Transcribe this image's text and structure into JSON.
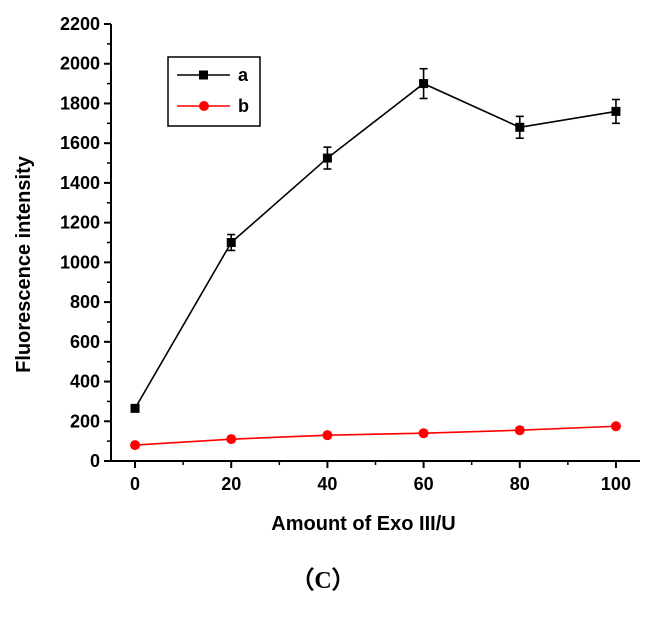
{
  "chart_data": {
    "type": "line",
    "xlabel": "Amount of Exo III/U",
    "ylabel": "Fluorescence intensity",
    "xlim": [
      -5,
      105
    ],
    "ylim": [
      0,
      2200
    ],
    "xticks": [
      0,
      20,
      40,
      60,
      80,
      100
    ],
    "yticks": [
      0,
      200,
      400,
      600,
      800,
      1000,
      1200,
      1400,
      1600,
      1800,
      2000,
      2200
    ],
    "grid": false,
    "legend_position": "top-left",
    "series": [
      {
        "name": "a",
        "color": "#000000",
        "marker": "square",
        "x": [
          0,
          20,
          40,
          60,
          80,
          100
        ],
        "y": [
          265,
          1100,
          1525,
          1900,
          1680,
          1760
        ],
        "error": [
          15,
          40,
          55,
          75,
          55,
          60
        ]
      },
      {
        "name": "b",
        "color": "#ff0000",
        "marker": "circle",
        "x": [
          0,
          20,
          40,
          60,
          80,
          100
        ],
        "y": [
          80,
          110,
          130,
          140,
          155,
          175
        ]
      }
    ]
  },
  "caption": "（C）"
}
